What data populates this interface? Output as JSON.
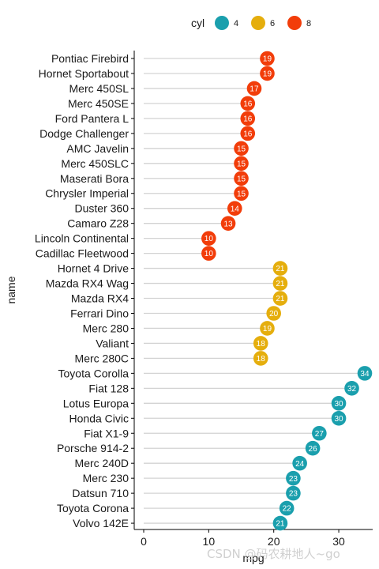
{
  "chart_data": {
    "type": "dot-lollipop",
    "xlabel": "mpg",
    "ylabel": "name",
    "xlim": [
      0,
      35
    ],
    "xticks": [
      0,
      10,
      20,
      30
    ],
    "legend": {
      "title": "cyl",
      "position": "top",
      "entries": [
        {
          "label": "4",
          "color": "#1a9fad"
        },
        {
          "label": "6",
          "color": "#e5ae0d"
        },
        {
          "label": "8",
          "color": "#f23d0a"
        }
      ]
    },
    "points": [
      {
        "name": "Pontiac Firebird",
        "mpg": 19,
        "cyl": "8",
        "label": "19"
      },
      {
        "name": "Hornet Sportabout",
        "mpg": 19,
        "cyl": "8",
        "label": "19"
      },
      {
        "name": "Merc 450SL",
        "mpg": 17,
        "cyl": "8",
        "label": "17"
      },
      {
        "name": "Merc 450SE",
        "mpg": 16,
        "cyl": "8",
        "label": "16"
      },
      {
        "name": "Ford Pantera L",
        "mpg": 16,
        "cyl": "8",
        "label": "16"
      },
      {
        "name": "Dodge Challenger",
        "mpg": 16,
        "cyl": "8",
        "label": "16"
      },
      {
        "name": "AMC Javelin",
        "mpg": 15,
        "cyl": "8",
        "label": "15"
      },
      {
        "name": "Merc 450SLC",
        "mpg": 15,
        "cyl": "8",
        "label": "15"
      },
      {
        "name": "Maserati Bora",
        "mpg": 15,
        "cyl": "8",
        "label": "15"
      },
      {
        "name": "Chrysler Imperial",
        "mpg": 15,
        "cyl": "8",
        "label": "15"
      },
      {
        "name": "Duster 360",
        "mpg": 14,
        "cyl": "8",
        "label": "14"
      },
      {
        "name": "Camaro Z28",
        "mpg": 13,
        "cyl": "8",
        "label": "13"
      },
      {
        "name": "Lincoln Continental",
        "mpg": 10,
        "cyl": "8",
        "label": "10"
      },
      {
        "name": "Cadillac Fleetwood",
        "mpg": 10,
        "cyl": "8",
        "label": "10"
      },
      {
        "name": "Hornet 4 Drive",
        "mpg": 21,
        "cyl": "6",
        "label": "21"
      },
      {
        "name": "Mazda RX4 Wag",
        "mpg": 21,
        "cyl": "6",
        "label": "21"
      },
      {
        "name": "Mazda RX4",
        "mpg": 21,
        "cyl": "6",
        "label": "21"
      },
      {
        "name": "Ferrari Dino",
        "mpg": 20,
        "cyl": "6",
        "label": "20"
      },
      {
        "name": "Merc 280",
        "mpg": 19,
        "cyl": "6",
        "label": "19"
      },
      {
        "name": "Valiant",
        "mpg": 18,
        "cyl": "6",
        "label": "18"
      },
      {
        "name": "Merc 280C",
        "mpg": 18,
        "cyl": "6",
        "label": "18"
      },
      {
        "name": "Toyota Corolla",
        "mpg": 34,
        "cyl": "4",
        "label": "34"
      },
      {
        "name": "Fiat 128",
        "mpg": 32,
        "cyl": "4",
        "label": "32"
      },
      {
        "name": "Lotus Europa",
        "mpg": 30,
        "cyl": "4",
        "label": "30"
      },
      {
        "name": "Honda Civic",
        "mpg": 30,
        "cyl": "4",
        "label": "30"
      },
      {
        "name": "Fiat X1-9",
        "mpg": 27,
        "cyl": "4",
        "label": "27"
      },
      {
        "name": "Porsche 914-2",
        "mpg": 26,
        "cyl": "4",
        "label": "26"
      },
      {
        "name": "Merc 240D",
        "mpg": 24,
        "cyl": "4",
        "label": "24"
      },
      {
        "name": "Merc 230",
        "mpg": 23,
        "cyl": "4",
        "label": "23"
      },
      {
        "name": "Datsun 710",
        "mpg": 23,
        "cyl": "4",
        "label": "23"
      },
      {
        "name": "Toyota Corona",
        "mpg": 22,
        "cyl": "4",
        "label": "22"
      },
      {
        "name": "Volvo 142E",
        "mpg": 21,
        "cyl": "4",
        "label": "21"
      }
    ]
  },
  "watermark": "CSDN @码农耕地人~go"
}
